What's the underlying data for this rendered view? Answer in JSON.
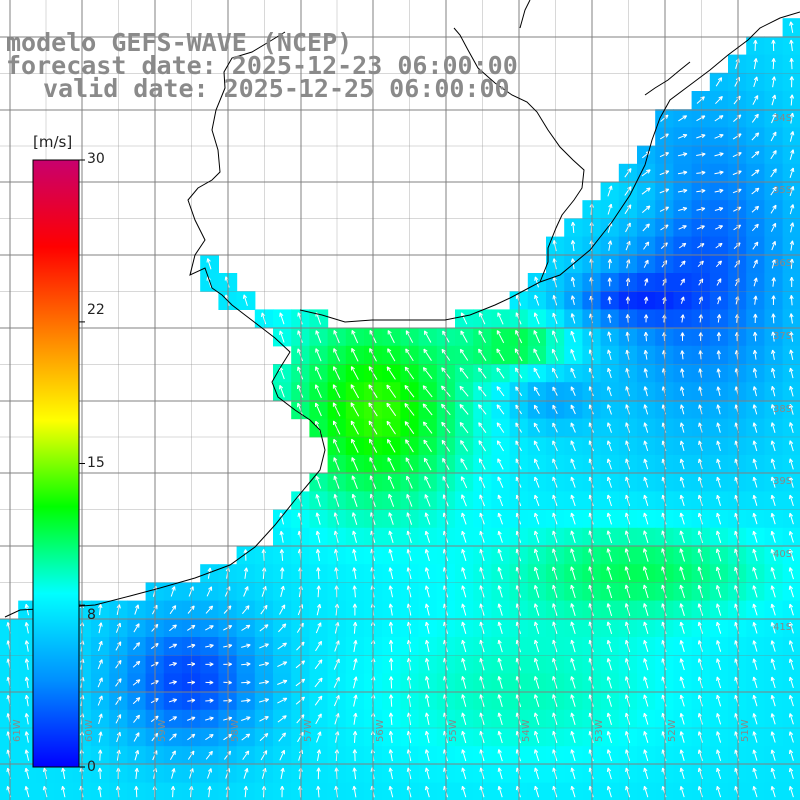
{
  "title": {
    "model": "modelo GEFS-WAVE (NCEP)",
    "forecast": "forecast date: 2025-12-23 06:00:00",
    "valid": "valid date: 2025-12-25 06:00:00"
  },
  "legend": {
    "units": "[m/s]",
    "min": 0,
    "max": 30,
    "ticks": [
      {
        "label": "30",
        "value": 30
      },
      {
        "label": "22",
        "value": 22
      },
      {
        "label": "15",
        "value": 15
      },
      {
        "label": "8",
        "value": 8
      },
      {
        "label": "0",
        "value": 0
      }
    ],
    "colors": [
      "#0000ff",
      "#0090ff",
      "#00ffff",
      "#00ff00",
      "#ffff00",
      "#ff8000",
      "#ff0000",
      "#c8006e"
    ]
  },
  "grid": {
    "lon_labels": [
      "61W",
      "60W",
      "59W",
      "58W",
      "57W",
      "56W",
      "55W",
      "54W",
      "53W",
      "52W",
      "51W"
    ],
    "lat_labels": [
      "34S",
      "35S",
      "36S",
      "37S",
      "38S",
      "39S",
      "40S",
      "41S"
    ]
  },
  "colors": {
    "grid_line": "#808080",
    "coast_line": "#000000",
    "land": "#ffffff",
    "arrow": "#ffffff",
    "title_text": "#8a8a8a"
  }
}
